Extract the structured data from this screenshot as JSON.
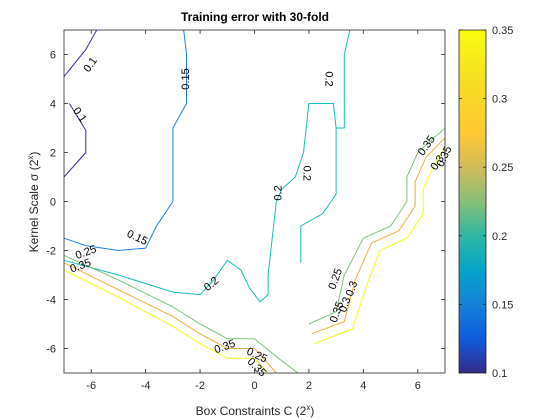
{
  "chart_data": {
    "type": "contour",
    "title": "Training error with 30-fold",
    "xlabel": "Box Constraints C (2",
    "xlabel_sup": "x",
    "xlabel_end": ")",
    "ylabel": "Kernel Scale σ (2",
    "ylabel_sup": "x",
    "ylabel_end": ")",
    "xlim": [
      -7,
      7
    ],
    "ylim": [
      -7,
      7
    ],
    "xticks": [
      "-6",
      "-4",
      "-2",
      "0",
      "2",
      "4",
      "6"
    ],
    "yticks": [
      "6",
      "4",
      "2",
      "0",
      "-2",
      "-4",
      "-6"
    ],
    "grid": false,
    "colorbar": {
      "range": [
        0.1,
        0.35
      ],
      "ticks": [
        "0.35",
        "0.3",
        "0.25",
        "0.2",
        "0.15",
        "0.1"
      ],
      "colormap": "parula"
    },
    "contours": [
      {
        "level": 0.1,
        "color": "#3e26a8",
        "points": [
          [
            -7,
            5.1
          ],
          [
            -6.2,
            6.2
          ],
          [
            -5.8,
            7
          ]
        ]
      },
      {
        "level": 0.1,
        "color": "#3e26a8",
        "points": [
          [
            -7,
            1
          ],
          [
            -6.2,
            2
          ],
          [
            -6.2,
            2.9
          ],
          [
            -6.8,
            4
          ]
        ]
      },
      {
        "level": 0.15,
        "color": "#1f82dd",
        "points": [
          [
            -7,
            -1.5
          ],
          [
            -6.2,
            -1.8
          ],
          [
            -5,
            -2
          ],
          [
            -4,
            -1.9
          ],
          [
            -3.6,
            -1
          ],
          [
            -3,
            0
          ],
          [
            -3,
            1
          ],
          [
            -3,
            3
          ],
          [
            -2.5,
            4
          ],
          [
            -2.5,
            6
          ],
          [
            -2.6,
            7
          ]
        ]
      },
      {
        "level": 0.2,
        "color": "#13beb8",
        "points": [
          [
            -7,
            -2.4
          ],
          [
            -5,
            -3
          ],
          [
            -3,
            -3.7
          ],
          [
            -2,
            -3.8
          ],
          [
            -1.5,
            -3.2
          ],
          [
            -1,
            -2.4
          ],
          [
            -0.5,
            -2.8
          ],
          [
            -0.2,
            -3.5
          ],
          [
            0.2,
            -4.1
          ],
          [
            0.5,
            -3.8
          ],
          [
            0.5,
            -3
          ],
          [
            0.6,
            -2
          ],
          [
            0.7,
            -1
          ],
          [
            0.8,
            0
          ],
          [
            1,
            0.5
          ],
          [
            1.5,
            1
          ],
          [
            1.8,
            2
          ],
          [
            1.9,
            3
          ],
          [
            2,
            4
          ],
          [
            2.9,
            4
          ],
          [
            3,
            3
          ],
          [
            3.3,
            3
          ],
          [
            3.3,
            6
          ],
          [
            3.5,
            7
          ]
        ]
      },
      {
        "level": 0.2,
        "color": "#13beb8",
        "points": [
          [
            1.7,
            -2.5
          ],
          [
            1.7,
            -1
          ],
          [
            2.5,
            -0.5
          ],
          [
            3,
            0.3
          ],
          [
            3,
            3
          ]
        ]
      },
      {
        "level": 0.25,
        "color": "#79c57a",
        "points": [
          [
            -7,
            -2.2
          ],
          [
            -5,
            -3.2
          ],
          [
            -3,
            -4.3
          ],
          [
            -2,
            -5
          ],
          [
            -1,
            -5.6
          ],
          [
            0,
            -5.6
          ],
          [
            1,
            -6.5
          ],
          [
            1.6,
            -7
          ]
        ]
      },
      {
        "level": 0.25,
        "color": "#79c57a",
        "points": [
          [
            2,
            -5
          ],
          [
            3,
            -4.5
          ],
          [
            3.3,
            -3
          ],
          [
            4,
            -1.5
          ],
          [
            5,
            -1
          ],
          [
            5.6,
            0
          ],
          [
            5.6,
            1
          ],
          [
            6,
            2
          ],
          [
            7,
            3
          ]
        ]
      },
      {
        "level": 0.3,
        "color": "#e8b13b",
        "points": [
          [
            -7,
            -2.5
          ],
          [
            -5,
            -3.6
          ],
          [
            -3,
            -4.7
          ],
          [
            -2,
            -5.4
          ],
          [
            -1,
            -6
          ],
          [
            0,
            -6
          ],
          [
            0.8,
            -7
          ]
        ]
      },
      {
        "level": 0.3,
        "color": "#e8b13b",
        "points": [
          [
            2.1,
            -5.4
          ],
          [
            3.3,
            -4.9
          ],
          [
            3.7,
            -3.2
          ],
          [
            4.3,
            -1.7
          ],
          [
            5.3,
            -1.2
          ],
          [
            5.9,
            -0.2
          ],
          [
            5.9,
            0.8
          ],
          [
            6.3,
            1.8
          ],
          [
            7,
            2.6
          ]
        ]
      },
      {
        "level": 0.35,
        "color": "#f9fb15",
        "points": [
          [
            -7,
            -2.8
          ],
          [
            -5,
            -3.9
          ],
          [
            -3,
            -5.1
          ],
          [
            -2,
            -5.8
          ],
          [
            -1,
            -6.4
          ],
          [
            0,
            -6.4
          ],
          [
            0.5,
            -7
          ]
        ]
      },
      {
        "level": 0.35,
        "color": "#f9fb15",
        "points": [
          [
            2.2,
            -5.8
          ],
          [
            3.6,
            -5.2
          ],
          [
            4.1,
            -3.5
          ],
          [
            4.6,
            -2
          ],
          [
            5.6,
            -1.5
          ],
          [
            6.2,
            -0.5
          ],
          [
            6.2,
            0.5
          ],
          [
            6.6,
            1.5
          ],
          [
            7,
            2.2
          ]
        ]
      }
    ],
    "labels": [
      {
        "text": "0.1",
        "x": -6.05,
        "y": 5.6,
        "rot": -55
      },
      {
        "text": "0.1",
        "x": -6.4,
        "y": 3.55,
        "rot": 55
      },
      {
        "text": "0.15",
        "x": -2.55,
        "y": 5.0,
        "rot": -90
      },
      {
        "text": "0.15",
        "x": -4.3,
        "y": -1.45,
        "rot": 25
      },
      {
        "text": "0.2",
        "x": 2.75,
        "y": 5.0,
        "rot": 90
      },
      {
        "text": "0.2",
        "x": 1.95,
        "y": 1.15,
        "rot": 90
      },
      {
        "text": "0.2",
        "x": 0.85,
        "y": 0.35,
        "rot": -90
      },
      {
        "text": "0.2",
        "x": -1.6,
        "y": -3.35,
        "rot": -40
      },
      {
        "text": "0.25",
        "x": -6.2,
        "y": -2.05,
        "rot": -20
      },
      {
        "text": "0.35",
        "x": -6.4,
        "y": -2.6,
        "rot": -20
      },
      {
        "text": "0.35",
        "x": -1.1,
        "y": -5.9,
        "rot": -20
      },
      {
        "text": "0.25",
        "x": 0.1,
        "y": -6.25,
        "rot": 25
      },
      {
        "text": "0.35",
        "x": 0.1,
        "y": -6.75,
        "rot": 45
      },
      {
        "text": "0.35",
        "x": 6.3,
        "y": 2.3,
        "rot": -55
      },
      {
        "text": "0.3",
        "x": 6.7,
        "y": 1.6,
        "rot": -55
      },
      {
        "text": "0.35",
        "x": 6.95,
        "y": 1.85,
        "rot": -65
      },
      {
        "text": "0.25",
        "x": 2.95,
        "y": -3.15,
        "rot": -70
      },
      {
        "text": "0.3",
        "x": 3.55,
        "y": -3.55,
        "rot": -70
      },
      {
        "text": "0.3",
        "x": 3.3,
        "y": -4.2,
        "rot": -70
      },
      {
        "text": "0.35",
        "x": 3.0,
        "y": -4.5,
        "rot": -70
      }
    ]
  }
}
